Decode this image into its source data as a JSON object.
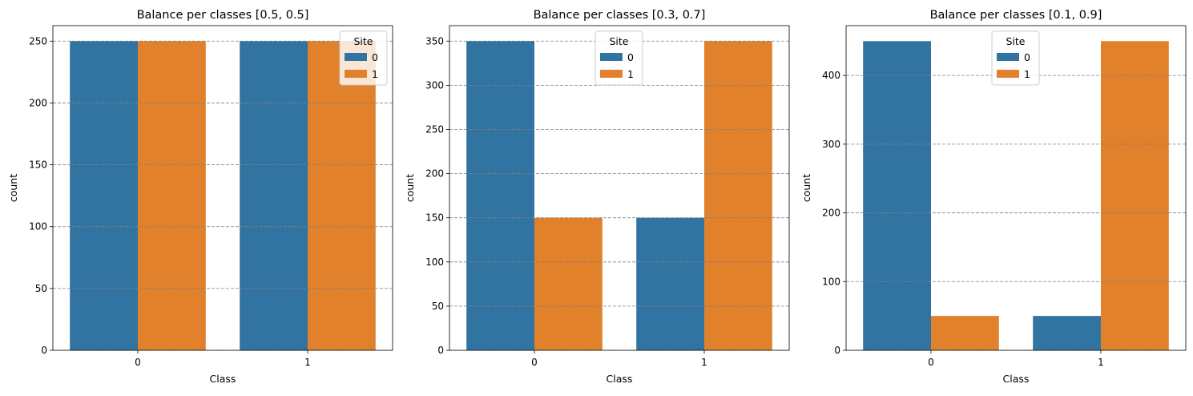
{
  "chart_data": [
    {
      "type": "bar",
      "title": "Balance per classes [0.5, 0.5]",
      "xlabel": "Class",
      "ylabel": "count",
      "categories": [
        "0",
        "1"
      ],
      "series": [
        {
          "name": "0",
          "values": [
            250,
            250
          ]
        },
        {
          "name": "1",
          "values": [
            250,
            250
          ]
        }
      ],
      "ylim": [
        0,
        262.5
      ],
      "yticks": [
        0,
        50,
        100,
        150,
        200,
        250
      ],
      "grid": "y dashed",
      "legend": {
        "title": "Site",
        "placement": "top-right"
      }
    },
    {
      "type": "bar",
      "title": "Balance per classes [0.3, 0.7]",
      "xlabel": "Class",
      "ylabel": "count",
      "categories": [
        "0",
        "1"
      ],
      "series": [
        {
          "name": "0",
          "values": [
            350,
            150
          ]
        },
        {
          "name": "1",
          "values": [
            150,
            350
          ]
        }
      ],
      "ylim": [
        0,
        367.5
      ],
      "yticks": [
        0,
        50,
        100,
        150,
        200,
        250,
        300,
        350
      ],
      "grid": "y dashed",
      "legend": {
        "title": "Site",
        "placement": "upper-center"
      }
    },
    {
      "type": "bar",
      "title": "Balance per classes [0.1, 0.9]",
      "xlabel": "Class",
      "ylabel": "count",
      "categories": [
        "0",
        "1"
      ],
      "series": [
        {
          "name": "0",
          "values": [
            450,
            50
          ]
        },
        {
          "name": "1",
          "values": [
            50,
            450
          ]
        }
      ],
      "ylim": [
        0,
        472.5
      ],
      "yticks": [
        0,
        100,
        200,
        300,
        400
      ],
      "grid": "y dashed",
      "legend": {
        "title": "Site",
        "placement": "upper-center"
      }
    }
  ],
  "colors": {
    "series0": "#3274a1",
    "series1": "#e1812c",
    "grid": "#808080"
  }
}
